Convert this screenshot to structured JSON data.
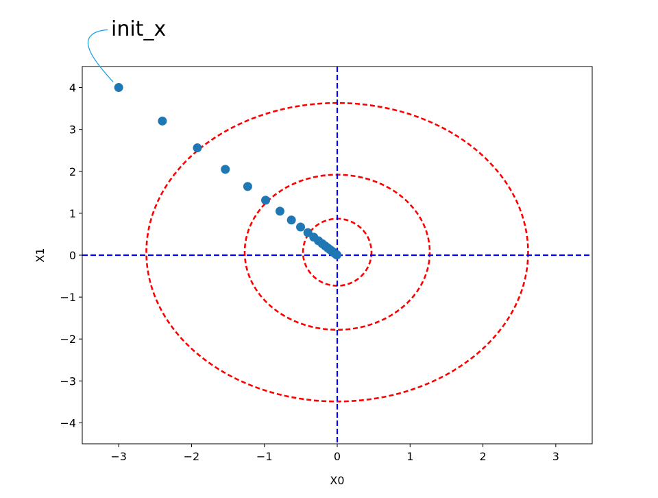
{
  "chart_data": {
    "type": "scatter",
    "title": "",
    "xlabel": "X0",
    "ylabel": "X1",
    "xlim": [
      -3.5,
      3.5
    ],
    "ylim": [
      -4.5,
      4.5
    ],
    "xticks": [
      -3,
      -2,
      -1,
      0,
      1,
      2,
      3
    ],
    "yticks": [
      -4,
      -3,
      -2,
      -1,
      0,
      1,
      2,
      3,
      4
    ],
    "xtick_labels": [
      "−3",
      "−2",
      "−1",
      "0",
      "1",
      "2",
      "3"
    ],
    "ytick_labels": [
      "−4",
      "−3",
      "−2",
      "−1",
      "0",
      "1",
      "2",
      "3",
      "4"
    ],
    "grid": false,
    "series": [
      {
        "type": "scatter",
        "color": "#1f77b4",
        "x": [
          -3.0,
          -2.4,
          -1.92,
          -1.536,
          -1.229,
          -0.983,
          -0.786,
          -0.629,
          -0.503,
          -0.403,
          -0.322,
          -0.258,
          -0.206,
          -0.165,
          -0.132,
          -0.106,
          -0.084,
          -0.068,
          -0.054,
          -0.043,
          -0.035,
          -0.028,
          -0.022,
          -0.018,
          -0.014,
          -0.011,
          -0.009,
          -0.007,
          -0.006,
          -0.005
        ],
        "y": [
          4.0,
          3.2,
          2.56,
          2.048,
          1.638,
          1.311,
          1.049,
          0.839,
          0.671,
          0.537,
          0.429,
          0.344,
          0.275,
          0.22,
          0.176,
          0.141,
          0.113,
          0.09,
          0.072,
          0.058,
          0.046,
          0.037,
          0.03,
          0.024,
          0.019,
          0.015,
          0.012,
          0.01,
          0.008,
          0.006
        ]
      }
    ],
    "contours": {
      "color": "#ff0000",
      "linestyle": "dashed",
      "ellipses": [
        {
          "cx": 0.0,
          "cy": 0.07,
          "rx": 0.47,
          "ry": 0.8
        },
        {
          "cx": 0.0,
          "cy": 0.07,
          "rx": 1.27,
          "ry": 1.85
        },
        {
          "cx": 0.0,
          "cy": 0.07,
          "rx": 2.62,
          "ry": 3.56
        }
      ]
    },
    "reference_lines": {
      "color": "#0000ff",
      "linestyle": "dashed",
      "x": 0,
      "y": 0
    },
    "annotations": [
      {
        "text": "init_x",
        "x": -3.0,
        "y": 4.0,
        "arrow_color": "#1ca0e0"
      }
    ]
  }
}
